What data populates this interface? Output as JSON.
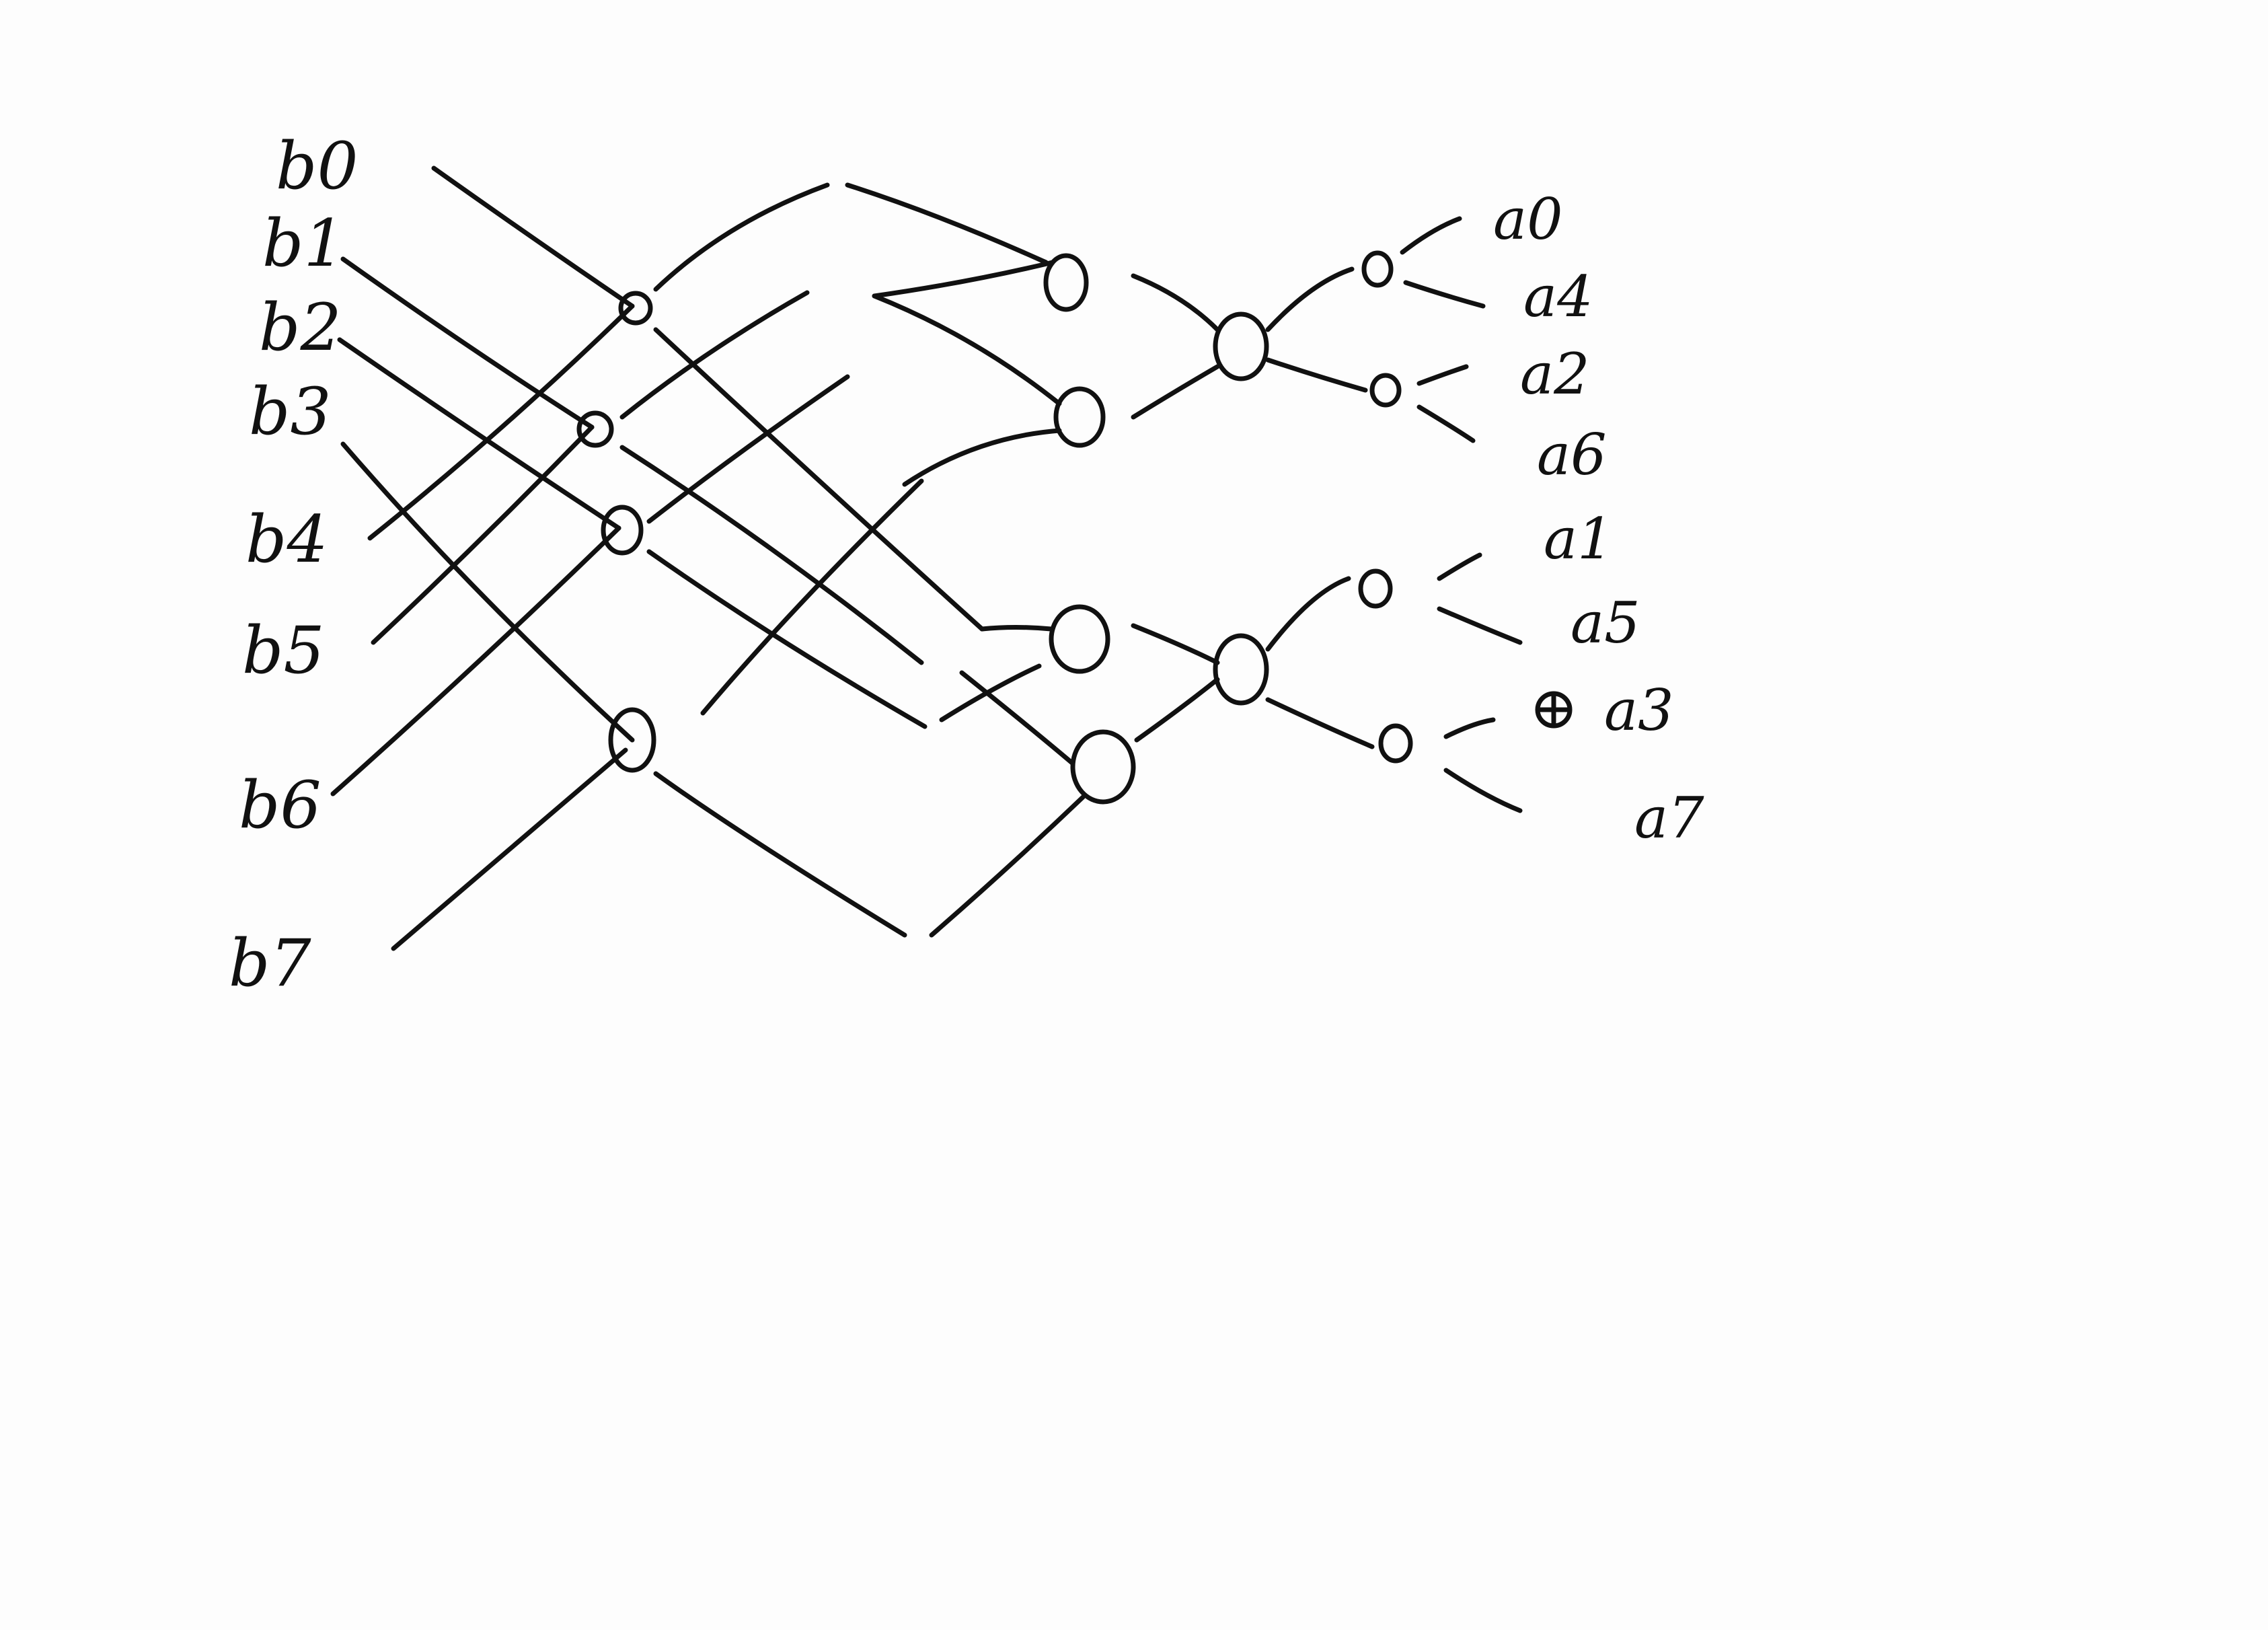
{
  "inputs": [
    "b0",
    "b1",
    "b2",
    "b3",
    "b4",
    "b5",
    "b6",
    "b7"
  ],
  "outputs": [
    "a0",
    "a4",
    "a2",
    "a6",
    "a1",
    "a5",
    "a3",
    "a7"
  ],
  "colors": {
    "ink": "#111111",
    "paper": "#fdfdfd"
  }
}
